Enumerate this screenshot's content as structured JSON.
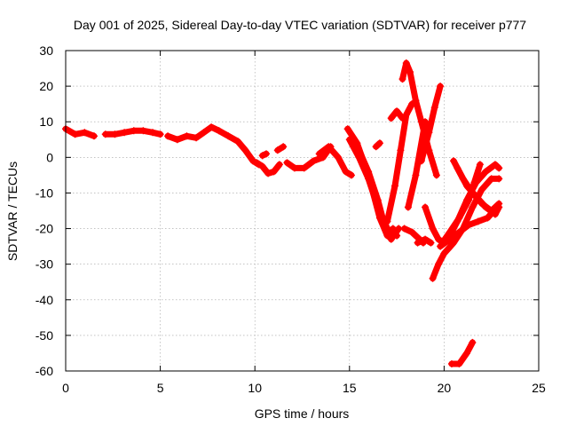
{
  "chart_data": {
    "type": "scatter",
    "title": "Day 001 of 2025, Sidereal Day-to-day VTEC variation (SDTVAR) for receiver p777",
    "xlabel": "GPS time / hours",
    "ylabel": "SDTVAR / TECUs",
    "xlim": [
      0,
      25
    ],
    "ylim": [
      -60,
      30
    ],
    "xticks": [
      0,
      5,
      10,
      15,
      20,
      25
    ],
    "yticks": [
      30,
      20,
      10,
      0,
      -10,
      -20,
      -30,
      -40,
      -50,
      -60
    ],
    "grid": true,
    "legend": "none",
    "marker": "plus",
    "color": "#ff0000",
    "series": [
      {
        "x": [
          0,
          0.5,
          1,
          1.5
        ],
        "y": [
          8,
          6.5,
          7,
          6
        ]
      },
      {
        "x": [
          2.1,
          2.6,
          3.1,
          3.6,
          4.1,
          4.6,
          5.0
        ],
        "y": [
          6.5,
          6.5,
          7,
          7.5,
          7.5,
          7,
          6.5
        ]
      },
      {
        "x": [
          5.4,
          5.9,
          6.4,
          6.9,
          7.3,
          7.7,
          8.1,
          8.6,
          9.1,
          9.5,
          9.9,
          10.2
        ],
        "y": [
          6,
          5,
          6,
          5.5,
          7,
          8.5,
          7.5,
          6,
          4.5,
          2,
          -1,
          -2
        ]
      },
      {
        "x": [
          10.1,
          10.4,
          10.7,
          11.0,
          11.3
        ],
        "y": [
          -1.5,
          -2.5,
          -4.5,
          -4,
          -2
        ]
      },
      {
        "x": [
          10.4,
          10.6
        ],
        "y": [
          0.5,
          1
        ]
      },
      {
        "x": [
          11.2,
          11.5
        ],
        "y": [
          2,
          3
        ]
      },
      {
        "x": [
          11.7,
          12.1,
          12.6,
          13.1,
          13.6,
          14.0
        ],
        "y": [
          -1.5,
          -3,
          -3,
          -1,
          0,
          3
        ]
      },
      {
        "x": [
          13.4,
          13.9,
          14.4,
          14.8,
          15.1
        ],
        "y": [
          1,
          3,
          0,
          -4,
          -5
        ]
      },
      {
        "x": [
          14.9,
          15.4,
          16.0,
          16.6,
          17.0,
          17.3
        ],
        "y": [
          8,
          4,
          -5,
          -17,
          -22,
          -20
        ]
      },
      {
        "x": [
          15.0,
          15.5,
          16.0,
          16.5,
          17.0,
          17.5
        ],
        "y": [
          5,
          0,
          -6,
          -14,
          -20,
          -22
        ]
      },
      {
        "x": [
          15.5,
          16.0,
          16.5,
          16.9,
          17.2,
          17.6
        ],
        "y": [
          2,
          -4,
          -12,
          -20,
          -23,
          -20
        ]
      },
      {
        "x": [
          16.4,
          16.6
        ],
        "y": [
          3,
          4
        ]
      },
      {
        "x": [
          17.0,
          17.4,
          17.7,
          18.0,
          18.3
        ],
        "y": [
          -18,
          -8,
          2,
          12,
          15
        ]
      },
      {
        "x": [
          17.2,
          17.5,
          17.8
        ],
        "y": [
          11,
          13,
          11
        ]
      },
      {
        "x": [
          17.9,
          18.3,
          18.7,
          18.9
        ],
        "y": [
          -20,
          -21,
          -23,
          -24
        ]
      },
      {
        "x": [
          17.8,
          18.0,
          18.2,
          18.5,
          18.8,
          19.2,
          19.6
        ],
        "y": [
          22,
          26.5,
          24,
          16,
          10,
          2,
          -5
        ]
      },
      {
        "x": [
          18.6,
          19.0,
          19.3
        ],
        "y": [
          -24,
          -23,
          -24
        ]
      },
      {
        "x": [
          18.8,
          19.2,
          19.5,
          19.8
        ],
        "y": [
          -1,
          7,
          14,
          20
        ]
      },
      {
        "x": [
          18.1,
          18.5,
          19.0
        ],
        "y": [
          -14,
          -5,
          10
        ]
      },
      {
        "x": [
          19.0,
          19.4,
          19.7,
          20.0,
          20.3
        ],
        "y": [
          -14,
          -20,
          -23,
          -24,
          -22
        ]
      },
      {
        "x": [
          19.4,
          19.7,
          20.0,
          20.5,
          21.0,
          21.5,
          22.0,
          22.5,
          22.9
        ],
        "y": [
          -34,
          -30,
          -27,
          -24,
          -20,
          -14,
          -9,
          -6,
          -6
        ]
      },
      {
        "x": [
          20.3,
          20.7,
          21.2,
          21.7,
          22.2,
          22.7,
          22.9
        ],
        "y": [
          -22,
          -18,
          -12,
          -7,
          -4,
          -2,
          -3
        ]
      },
      {
        "x": [
          20.5,
          21.0,
          21.5,
          22.0,
          22.5,
          22.9
        ],
        "y": [
          -1,
          -6,
          -10,
          -13,
          -15,
          -13
        ]
      },
      {
        "x": [
          20.7,
          21.2,
          21.7,
          22.2,
          22.7,
          22.9
        ],
        "y": [
          -3,
          -8,
          -11,
          -14,
          -16,
          -14
        ]
      },
      {
        "x": [
          19.8,
          20.3,
          20.8,
          21.3,
          21.8,
          22.3,
          22.8
        ],
        "y": [
          -25,
          -23,
          -21,
          -19,
          -18,
          -17,
          -14
        ]
      },
      {
        "x": [
          19.9,
          20.3,
          20.8,
          21.3,
          21.6,
          21.9
        ],
        "y": [
          -24,
          -21,
          -17,
          -12,
          -7,
          -2
        ]
      },
      {
        "x": [
          20.4,
          20.8,
          21.2,
          21.5
        ],
        "y": [
          -58,
          -58,
          -55,
          -52
        ]
      }
    ]
  }
}
